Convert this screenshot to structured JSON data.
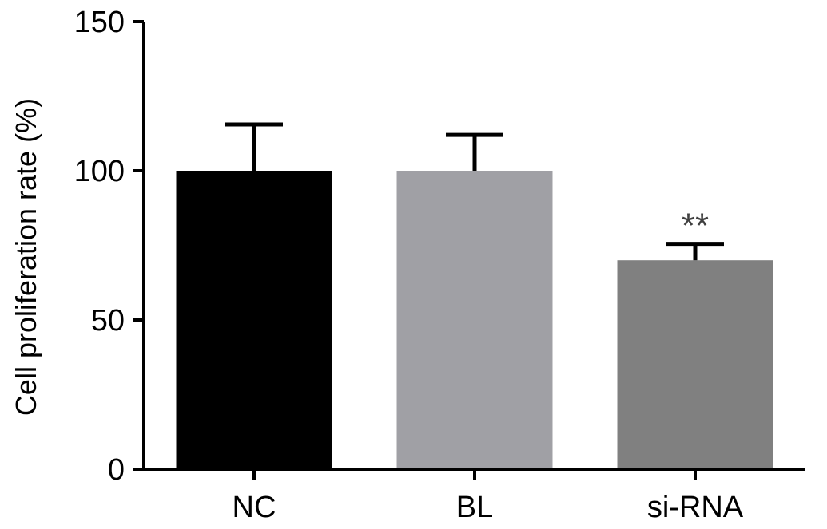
{
  "chart_data": {
    "type": "bar",
    "title": "",
    "xlabel": "",
    "ylabel": "Cell proliferation rate (%)",
    "ylim": [
      0,
      150
    ],
    "yticks": [
      0,
      50,
      100,
      150
    ],
    "categories": [
      "NC",
      "BL",
      "si-RNA"
    ],
    "values": [
      100,
      100,
      70
    ],
    "errors": [
      15.5,
      12,
      5.5
    ],
    "colors": [
      "#000000",
      "#a0a0a5",
      "#808080"
    ],
    "annotations": [
      "",
      "",
      "**"
    ],
    "grid": false,
    "legend": "none"
  }
}
